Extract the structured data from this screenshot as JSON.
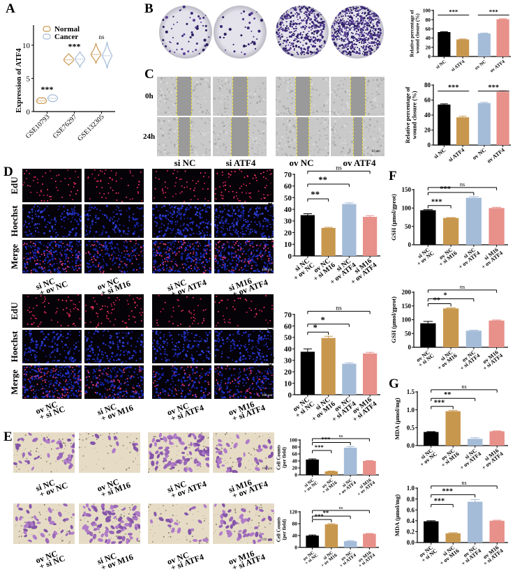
{
  "panels": {
    "A": "A",
    "B": "B",
    "C": "C",
    "D": "D",
    "E": "E",
    "F": "F",
    "G": "G"
  },
  "colors": {
    "black": "#000000",
    "gold": "#c8974e",
    "blue": "#a5bcd8",
    "pink": "#e8908a",
    "normal": "#c8974e",
    "cancer": "#a5bcd8"
  },
  "bc_columns": [
    "si NC",
    "si ATF4",
    "ov NC",
    "ov ATF4"
  ],
  "c_rows": [
    "0h",
    "24h"
  ],
  "c_scalebar": "10 μm",
  "d_rows": [
    "EdU",
    "Hoechst",
    "Merge"
  ],
  "scalebar_um": "100 μm",
  "groups_set1": [
    [
      "si NC",
      "+ ov NC"
    ],
    [
      "ov NC",
      "+ si M16"
    ],
    [
      "si NC",
      "+ ov ATF4"
    ],
    [
      "si M16",
      "+ ov ATF4"
    ]
  ],
  "groups_set2": [
    [
      "ov NC",
      "+ si NC"
    ],
    [
      "si NC",
      "+ ov M16"
    ],
    [
      "ov NC",
      "+ si ATF4"
    ],
    [
      "ov M16",
      "+ si ATF4"
    ]
  ],
  "chart_data": [
    {
      "id": "A",
      "type": "violin",
      "ylabel": "Expression of ATF4",
      "categories": [
        "GSE10793",
        "GSE76297",
        "GSE132305"
      ],
      "legend": [
        "Normal",
        "Cancer"
      ],
      "legend_position": "top-left",
      "ylim": [
        0,
        12.5
      ],
      "ticks": [
        0,
        5,
        10
      ],
      "series": [
        {
          "name": "Normal",
          "median": [
            1.6,
            7.8,
            8.6
          ],
          "min": [
            1.3,
            7.0,
            7.3
          ],
          "max": [
            2.0,
            8.7,
            10.3
          ]
        },
        {
          "name": "Cancer",
          "median": [
            2.0,
            7.9,
            8.4
          ],
          "min": [
            1.5,
            6.7,
            6.5
          ],
          "max": [
            2.5,
            9.0,
            10.5
          ]
        }
      ],
      "annotations": [
        "***",
        "***",
        "ns"
      ]
    },
    {
      "id": "B",
      "type": "bar",
      "ylabel": [
        "Relative percentage of",
        "wound closure (%)"
      ],
      "categories": [
        "si NC",
        "si ATF4",
        "ov NC",
        "ov ATF4"
      ],
      "values": [
        53,
        37,
        50,
        81
      ],
      "errors": [
        1,
        1,
        1,
        1
      ],
      "ylim": [
        0,
        100
      ],
      "ticks": [
        0,
        20,
        40,
        60,
        80,
        100
      ],
      "brackets": [
        {
          "from": 0,
          "to": 1,
          "label": "***"
        },
        {
          "from": 2,
          "to": 3,
          "label": "***"
        }
      ],
      "flat": true
    },
    {
      "id": "C",
      "type": "bar",
      "ylabel": [
        "Relative percentage of",
        "wound closure (%)"
      ],
      "categories": [
        "si NC",
        "si ATF4",
        "ov NC",
        "ov ATF4"
      ],
      "values": [
        54,
        37,
        56,
        71
      ],
      "errors": [
        1,
        1.5,
        1,
        1.5
      ],
      "ylim": [
        0,
        80
      ],
      "ticks": [
        0,
        20,
        40,
        60,
        80
      ],
      "brackets": [
        {
          "from": 0,
          "to": 1,
          "label": "***"
        },
        {
          "from": 2,
          "to": 3,
          "label": "***"
        }
      ],
      "flat": true
    },
    {
      "id": "D1",
      "type": "bar",
      "ylabel": [
        "EdU incorporation (%)"
      ],
      "categories": [
        "si NC + ov NC",
        "ov NC + si M16",
        "si NC + ov ATF4",
        "si M16 + ov ATF4"
      ],
      "values": [
        35,
        24,
        44.5,
        33.5
      ],
      "errors": [
        1.2,
        0.5,
        1,
        1
      ],
      "ylim": [
        0,
        70
      ],
      "ticks": [
        0,
        10,
        20,
        30,
        40,
        50,
        60,
        70
      ],
      "brackets": [
        {
          "from": 0,
          "to": 1,
          "label": "**"
        },
        {
          "from": 0,
          "to": 2,
          "label": "**"
        },
        {
          "from": 0,
          "to": 3,
          "label": "ns"
        }
      ]
    },
    {
      "id": "D2",
      "type": "bar",
      "ylabel": [
        "EdU incorporation (%)"
      ],
      "categories": [
        "ov NC + si NC",
        "si NC + ov M16",
        "ov NC + si ATF4",
        "ov M16 + si ATF4"
      ],
      "values": [
        37.5,
        49.5,
        27,
        36
      ],
      "errors": [
        2.5,
        1.5,
        0.8,
        1
      ],
      "ylim": [
        0,
        70
      ],
      "ticks": [
        0,
        10,
        20,
        30,
        40,
        50,
        60,
        70
      ],
      "brackets": [
        {
          "from": 0,
          "to": 1,
          "label": "*"
        },
        {
          "from": 0,
          "to": 2,
          "label": "*"
        },
        {
          "from": 0,
          "to": 3,
          "label": "ns"
        }
      ]
    },
    {
      "id": "E1",
      "type": "bar",
      "ylabel": [
        "Cell Counts",
        "(per field)"
      ],
      "categories": [
        "si NC + ov NC",
        "ov NC + si M16",
        "si NC + ov ATF4",
        "si M16 + ov ATF4"
      ],
      "values": [
        44,
        10,
        78,
        40
      ],
      "errors": [
        2,
        1,
        3,
        1
      ],
      "ylim": [
        0,
        100
      ],
      "ticks": [
        0,
        20,
        40,
        60,
        80,
        100
      ],
      "brackets": [
        {
          "from": 0,
          "to": 1,
          "label": "***"
        },
        {
          "from": 0,
          "to": 2,
          "label": "***"
        },
        {
          "from": 0,
          "to": 3,
          "label": "ns"
        }
      ]
    },
    {
      "id": "E2",
      "type": "bar",
      "ylabel": [
        "Cell Counts",
        "(per field)"
      ],
      "categories": [
        "ov NC + si NC",
        "si NC + ov M16",
        "ov NC + si ATF4",
        "ov M16 + si ATF4"
      ],
      "values": [
        40,
        78,
        21,
        46
      ],
      "errors": [
        2,
        2,
        2,
        1
      ],
      "ylim": [
        0,
        120
      ],
      "ticks": [
        0,
        40,
        80,
        120
      ],
      "brackets": [
        {
          "from": 0,
          "to": 1,
          "label": "***"
        },
        {
          "from": 0,
          "to": 2,
          "label": "**"
        },
        {
          "from": 0,
          "to": 3,
          "label": "ns"
        }
      ]
    },
    {
      "id": "F1",
      "type": "bar",
      "ylabel": [
        "GSH (μmol/gprot)"
      ],
      "categories": [
        "si NC + ov NC",
        "ov NC + si M16",
        "si NC + ov ATF4",
        "si M16 + ov ATF4"
      ],
      "values": [
        94,
        73,
        128,
        100
      ],
      "errors": [
        1.5,
        1,
        3,
        2
      ],
      "ylim": [
        0,
        150
      ],
      "ticks": [
        0,
        50,
        100,
        150
      ],
      "brackets": [
        {
          "from": 0,
          "to": 1,
          "label": "***"
        },
        {
          "from": 0,
          "to": 2,
          "label": "***"
        },
        {
          "from": 0,
          "to": 3,
          "label": "ns"
        }
      ]
    },
    {
      "id": "F2",
      "type": "bar",
      "ylabel": [
        "GSH (μmol/gprot)"
      ],
      "categories": [
        "ov NC + si NC",
        "si NC + ov M16",
        "ov NC + si ATF4",
        "ov M16 + si ATF4"
      ],
      "values": [
        87,
        141,
        60,
        97
      ],
      "errors": [
        7,
        2,
        2,
        2
      ],
      "ylim": [
        0,
        200
      ],
      "ticks": [
        0,
        50,
        100,
        150,
        200
      ],
      "brackets": [
        {
          "from": 0,
          "to": 1,
          "label": "**"
        },
        {
          "from": 0,
          "to": 2,
          "label": "*"
        },
        {
          "from": 0,
          "to": 3,
          "label": "ns"
        }
      ]
    },
    {
      "id": "G1",
      "type": "bar",
      "ylabel": [
        "MDA (μmol/mg)"
      ],
      "categories": [
        "si NC + ov NC",
        "ov NC + si M16",
        "si NC + ov ATF4",
        "si M16 + ov ATF4"
      ],
      "values": [
        0.38,
        0.96,
        0.19,
        0.4
      ],
      "errors": [
        0.01,
        0.02,
        0.03,
        0.01
      ],
      "ylim": [
        0,
        1.5
      ],
      "ticks": [
        0,
        0.5,
        1.0,
        1.5
      ],
      "tick_decimals": 1,
      "brackets": [
        {
          "from": 0,
          "to": 1,
          "label": "***"
        },
        {
          "from": 0,
          "to": 2,
          "label": "**"
        },
        {
          "from": 0,
          "to": 3,
          "label": "ns"
        }
      ]
    },
    {
      "id": "G2",
      "type": "bar",
      "ylabel": [
        "MDA (μmol/mg)"
      ],
      "categories": [
        "ov NC + si NC",
        "si NC + ov M16",
        "ov NC + si ATF4",
        "ov M16 + si ATF4"
      ],
      "values": [
        0.39,
        0.17,
        0.75,
        0.4
      ],
      "errors": [
        0.01,
        0.01,
        0.04,
        0.01
      ],
      "ylim": [
        0,
        1.0
      ],
      "ticks": [
        0,
        0.2,
        0.4,
        0.6,
        0.8,
        1.0
      ],
      "tick_decimals": 1,
      "brackets": [
        {
          "from": 0,
          "to": 1,
          "label": "***"
        },
        {
          "from": 0,
          "to": 2,
          "label": "***"
        },
        {
          "from": 0,
          "to": 3,
          "label": "ns"
        }
      ]
    }
  ]
}
